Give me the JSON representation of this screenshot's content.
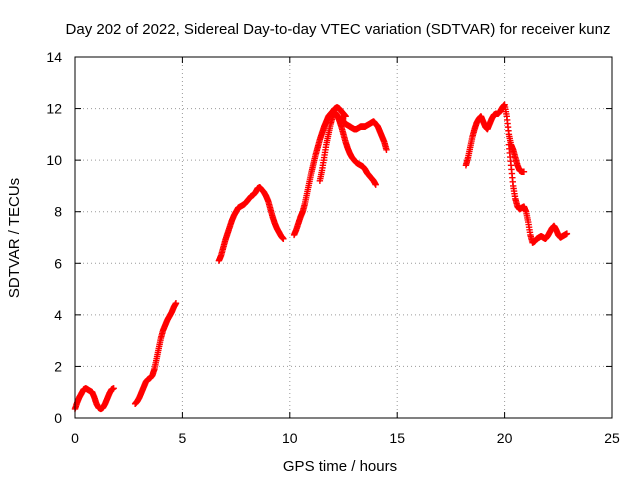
{
  "chart_data": {
    "type": "scatter",
    "title": "Day 202 of 2022, Sidereal Day-to-day VTEC variation (SDTVAR) for receiver kunz",
    "xlabel": "GPS time / hours",
    "ylabel": "SDTVAR / TECUs",
    "xlim": [
      0,
      25
    ],
    "ylim": [
      0,
      14
    ],
    "x_ticks": [
      0,
      5,
      10,
      15,
      20,
      25
    ],
    "y_ticks": [
      0,
      2,
      4,
      6,
      8,
      10,
      12,
      14
    ],
    "grid": true,
    "marker": "+",
    "marker_color": "#ff0000",
    "series": [
      {
        "name": "kunz",
        "segments": [
          {
            "x": [
              0.0,
              0.1,
              0.2,
              0.3,
              0.4,
              0.5,
              0.6,
              0.7,
              0.8,
              0.9,
              1.0,
              1.1,
              1.2,
              1.3,
              1.4,
              1.5,
              1.6,
              1.7,
              1.8
            ],
            "y": [
              0.35,
              0.6,
              0.8,
              0.95,
              1.1,
              1.15,
              1.1,
              1.05,
              1.0,
              0.8,
              0.55,
              0.4,
              0.35,
              0.4,
              0.55,
              0.75,
              0.95,
              1.1,
              1.15
            ]
          },
          {
            "x": [
              2.8,
              2.9,
              3.0,
              3.1,
              3.2,
              3.3,
              3.4,
              3.5,
              3.6,
              3.7,
              3.8,
              3.9,
              4.0,
              4.1,
              4.2,
              4.3,
              4.4,
              4.5,
              4.6,
              4.7
            ],
            "y": [
              0.55,
              0.65,
              0.8,
              1.0,
              1.2,
              1.4,
              1.5,
              1.55,
              1.65,
              1.9,
              2.3,
              2.7,
              3.1,
              3.4,
              3.6,
              3.8,
              3.95,
              4.1,
              4.3,
              4.45
            ]
          },
          {
            "x": [
              6.7,
              6.8,
              6.9,
              7.0,
              7.1,
              7.2,
              7.3,
              7.4,
              7.5,
              7.6,
              7.7,
              7.8,
              7.9,
              8.0,
              8.1,
              8.2,
              8.3,
              8.4,
              8.5,
              8.6,
              8.7,
              8.8,
              8.9,
              9.0,
              9.1,
              9.2,
              9.3,
              9.4,
              9.5,
              9.6,
              9.7
            ],
            "y": [
              6.1,
              6.3,
              6.6,
              6.9,
              7.15,
              7.4,
              7.65,
              7.85,
              8.0,
              8.15,
              8.2,
              8.25,
              8.3,
              8.4,
              8.5,
              8.6,
              8.65,
              8.75,
              8.9,
              8.95,
              8.85,
              8.75,
              8.6,
              8.4,
              8.1,
              7.8,
              7.55,
              7.35,
              7.2,
              7.05,
              6.95
            ]
          },
          {
            "x": [
              10.2,
              10.3,
              10.4,
              10.5,
              10.6,
              10.7,
              10.8,
              10.9,
              11.0,
              11.1,
              11.2,
              11.3,
              11.4,
              11.5,
              11.6,
              11.7,
              11.8,
              11.9,
              12.0,
              12.1,
              12.2,
              12.3,
              12.4,
              12.5,
              12.6
            ],
            "y": [
              7.1,
              7.3,
              7.55,
              7.8,
              8.0,
              8.3,
              8.7,
              9.1,
              9.5,
              9.85,
              10.2,
              10.5,
              10.8,
              11.05,
              11.3,
              11.5,
              11.7,
              11.8,
              11.9,
              12.0,
              12.05,
              12.0,
              11.9,
              11.8,
              11.7
            ]
          },
          {
            "x": [
              11.4,
              11.5,
              11.6,
              11.7,
              11.8,
              11.9,
              12.0,
              12.1,
              12.2,
              12.3,
              12.4,
              12.5,
              12.6,
              12.7,
              12.8,
              12.9,
              13.0,
              13.1,
              13.2,
              13.3,
              13.4,
              13.5,
              13.6,
              13.7,
              13.8,
              13.9,
              14.0
            ],
            "y": [
              9.2,
              9.6,
              10.1,
              10.6,
              11.0,
              11.4,
              11.7,
              11.85,
              11.75,
              11.55,
              11.3,
              11.0,
              10.7,
              10.45,
              10.25,
              10.1,
              10.0,
              9.9,
              9.85,
              9.8,
              9.75,
              9.65,
              9.5,
              9.4,
              9.3,
              9.2,
              9.05
            ]
          },
          {
            "x": [
              12.4,
              12.5,
              12.6,
              12.7,
              12.8,
              12.9,
              13.0,
              13.1,
              13.2,
              13.3,
              13.4,
              13.5,
              13.6,
              13.7,
              13.8,
              13.9,
              14.0,
              14.1,
              14.2,
              14.3,
              14.4,
              14.5
            ],
            "y": [
              11.7,
              11.5,
              11.4,
              11.35,
              11.3,
              11.25,
              11.2,
              11.2,
              11.25,
              11.3,
              11.3,
              11.3,
              11.35,
              11.4,
              11.45,
              11.5,
              11.4,
              11.3,
              11.1,
              10.9,
              10.7,
              10.4
            ]
          },
          {
            "x": [
              18.2,
              18.3,
              18.4,
              18.5,
              18.6,
              18.7,
              18.8,
              18.9,
              19.0,
              19.1,
              19.2,
              19.3,
              19.4,
              19.5,
              19.6,
              19.7,
              19.8,
              19.9,
              20.0,
              20.1,
              20.2,
              20.3,
              20.4,
              20.5,
              20.6,
              20.7,
              20.8,
              20.9
            ],
            "y": [
              9.8,
              10.1,
              10.5,
              10.9,
              11.2,
              11.45,
              11.6,
              11.7,
              11.5,
              11.3,
              11.2,
              11.4,
              11.6,
              11.75,
              11.8,
              11.8,
              11.9,
              12.05,
              12.15,
              11.7,
              11.0,
              10.6,
              10.4,
              10.1,
              9.8,
              9.6,
              9.55,
              9.55
            ]
          },
          {
            "x": [
              20.2,
              20.3,
              20.4,
              20.5,
              20.6,
              20.7,
              20.8,
              20.9,
              21.0,
              21.1,
              21.2,
              21.3,
              21.4,
              21.5,
              21.6,
              21.7,
              21.8,
              21.9,
              22.0,
              22.1,
              22.2,
              22.3,
              22.4,
              22.5,
              22.6,
              22.7,
              22.8,
              22.9
            ],
            "y": [
              10.6,
              9.8,
              9.0,
              8.5,
              8.2,
              8.1,
              8.15,
              8.2,
              8.0,
              7.6,
              7.1,
              6.8,
              6.85,
              6.95,
              7.0,
              7.05,
              7.0,
              6.95,
              7.05,
              7.2,
              7.35,
              7.45,
              7.3,
              7.1,
              7.0,
              7.05,
              7.1,
              7.15
            ]
          }
        ]
      }
    ]
  }
}
